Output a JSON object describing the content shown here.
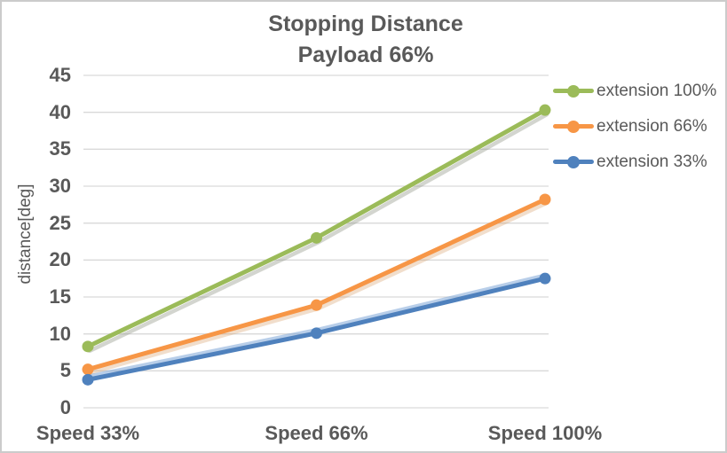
{
  "title": {
    "line1": "Stopping Distance",
    "line2": "Payload 66%"
  },
  "chart_data": {
    "type": "line",
    "title": "Stopping Distance Payload 66%",
    "categories": [
      "Speed 33%",
      "Speed 66%",
      "Speed 100%"
    ],
    "series": [
      {
        "name": "extension 100%",
        "color": "#9BBB59",
        "shadow": "rgba(145,150,135,0.40)",
        "values": [
          8.3,
          23,
          40.3
        ]
      },
      {
        "name": "extension 66%",
        "color": "#F79646",
        "shadow": "rgba(215,160,110,0.35)",
        "values": [
          5.2,
          13.9,
          28.2
        ]
      },
      {
        "name": "extension 33%",
        "color": "#4F81BD",
        "shadow": "rgba(125,165,215,0.55)",
        "values": [
          3.8,
          10.1,
          17.5
        ]
      }
    ],
    "xlabel": "",
    "ylabel": "distance[deg]",
    "ylim": [
      0,
      45
    ],
    "ytick_step": 5,
    "yticks": [
      0,
      5,
      10,
      15,
      20,
      25,
      30,
      35,
      40,
      45
    ],
    "grid": true,
    "legend_position": "right"
  },
  "colors": {
    "text": "#595959",
    "gridline": "#D9D9D9",
    "border": "#CBCBCB",
    "background": "#FFFFFF"
  }
}
